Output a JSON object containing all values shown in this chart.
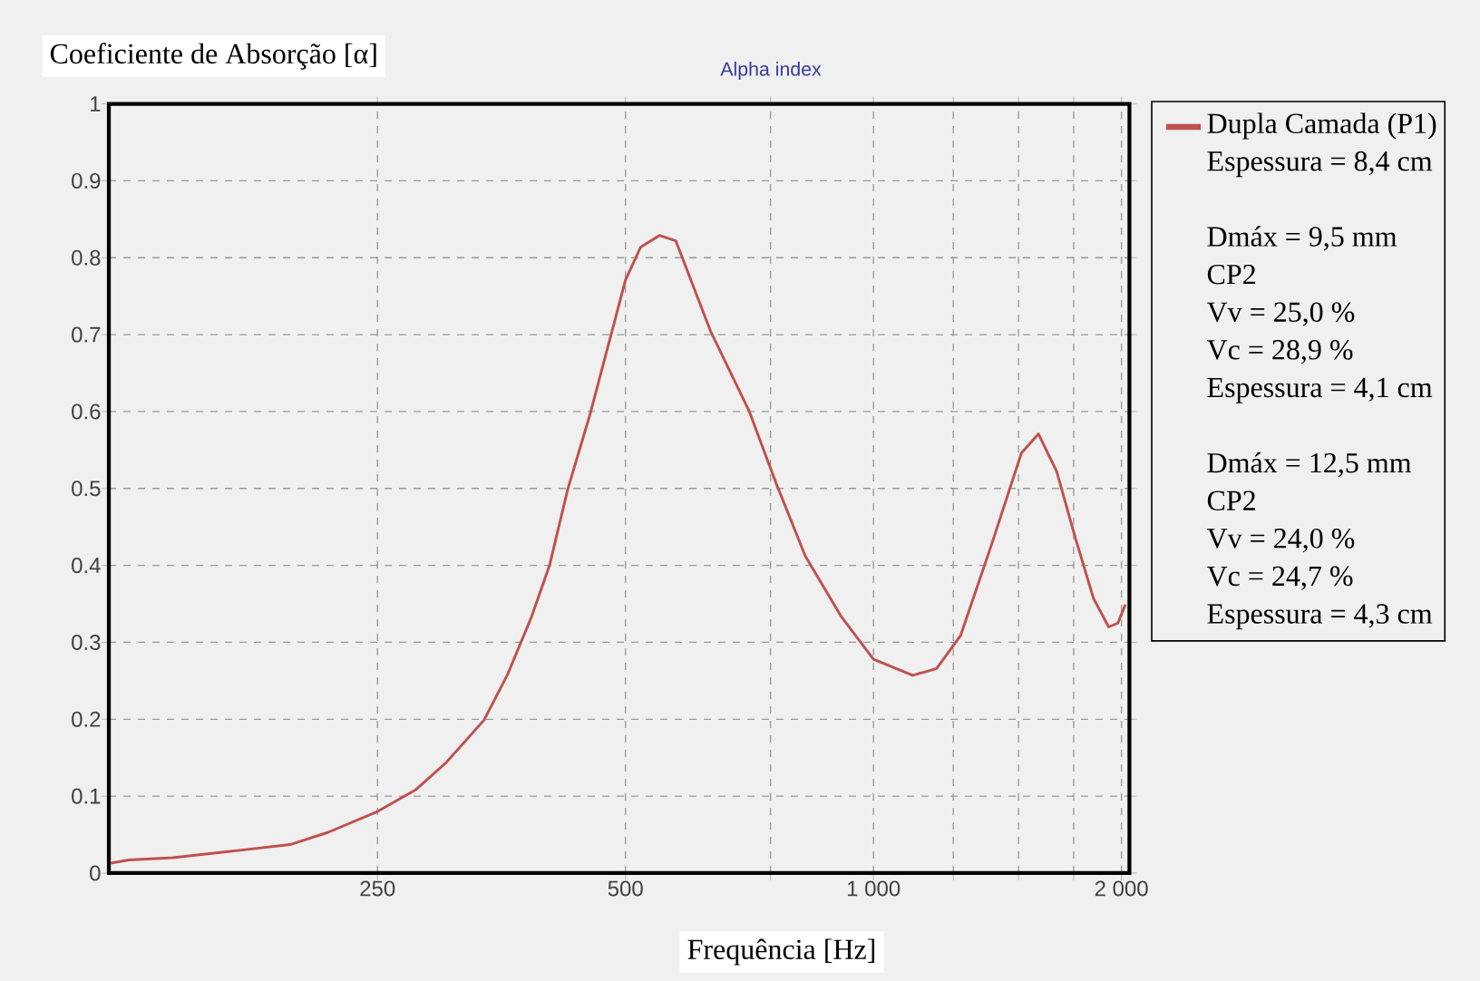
{
  "chart_data": {
    "type": "line",
    "title": "Alpha index",
    "xlabel": "Frequência [Hz]",
    "ylabel": "Coeficiente de Absorção [α]",
    "log": "x",
    "grid": true,
    "legend": "right",
    "xlim": [
      118,
      2045
    ],
    "ylim": [
      0,
      1
    ],
    "xticks": [
      250,
      500,
      {
        "value": 750,
        "label": null
      },
      {
        "value": 1000,
        "label": "1 000"
      },
      {
        "value": 1250,
        "label": null
      },
      {
        "value": 1500,
        "label": null
      },
      {
        "value": 1750,
        "label": null
      },
      {
        "value": 2000,
        "label": "2 000"
      }
    ],
    "yticks": [
      0,
      0.1,
      0.2,
      0.3,
      0.4,
      0.5,
      0.6,
      0.7,
      0.8,
      0.9,
      1
    ],
    "series": [
      {
        "name": "Dupla Camada (P1)",
        "color": "#c0504d",
        "x": [
          118.6,
          124.8,
          141.1,
          168.1,
          195.8,
          217.8,
          250,
          278,
          303.1,
          336.8,
          359.6,
          384.5,
          404.4,
          425.5,
          452.2,
          481.4,
          500,
          521.8,
          549.8,
          575.5,
          634.6,
          706.3,
          761.7,
          826.7,
          914.5,
          1000,
          1116,
          1193,
          1276,
          1392,
          1512,
          1586,
          1669,
          1758,
          1850,
          1930,
          1980,
          2022
        ],
        "values": [
          0.013,
          0.017,
          0.02,
          0.029,
          0.037,
          0.053,
          0.08,
          0.108,
          0.144,
          0.199,
          0.258,
          0.333,
          0.4,
          0.499,
          0.594,
          0.704,
          0.771,
          0.814,
          0.829,
          0.822,
          0.704,
          0.601,
          0.507,
          0.412,
          0.333,
          0.278,
          0.257,
          0.266,
          0.309,
          0.428,
          0.546,
          0.571,
          0.522,
          0.436,
          0.357,
          0.32,
          0.325,
          0.349
        ]
      }
    ],
    "annotations": [
      "Espessura = 8,4 cm",
      "Dmáx = 9,5 mm",
      "CP2",
      "Vv = 25,0 %",
      "Vc = 28,9 %",
      "Espessura = 4,1 cm",
      "Dmáx = 12,5 mm",
      "CP2",
      "Vv = 24,0 %",
      "Vc = 24,7 %",
      "Espessura = 4,3 cm"
    ]
  }
}
